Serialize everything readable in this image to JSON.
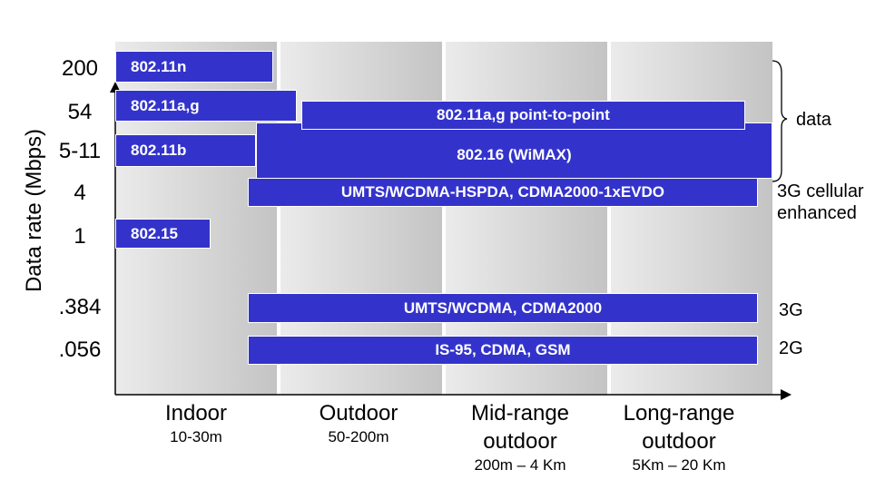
{
  "chart_data": {
    "type": "bar",
    "title": "",
    "ylabel": "Data rate (Mbps)",
    "xlabel": "",
    "y_tick_labels": [
      "200",
      "54",
      "5-11",
      "4",
      "1",
      ".384",
      ".056"
    ],
    "x_categories": [
      {
        "name": "Indoor",
        "range": "10-30m"
      },
      {
        "name": "Outdoor",
        "range": "50-200m"
      },
      {
        "name": "Mid-range outdoor",
        "range": "200m – 4 Km"
      },
      {
        "name": "Long-range outdoor",
        "range": "5Km – 20 Km"
      }
    ],
    "bars": [
      {
        "label": "802.11n",
        "rate": "200",
        "from": 0.0,
        "to": 0.98
      },
      {
        "label": "802.11a,g",
        "rate": "54",
        "from": 0.0,
        "to": 1.1
      },
      {
        "label": "802.11a,g point-to-point",
        "rate": "54",
        "from": 1.13,
        "to": 3.83
      },
      {
        "label": "802.11b",
        "rate": "5-11",
        "from": 0.0,
        "to": 0.87
      },
      {
        "label": "802.16 (WiMAX)",
        "rate": "5-11",
        "from": 0.87,
        "to": 4.0
      },
      {
        "label": "UMTS/WCDMA-HSPDA, CDMA2000-1xEVDO",
        "rate": "4",
        "from": 0.82,
        "to": 3.91
      },
      {
        "label": "802.15",
        "rate": "1",
        "from": 0.0,
        "to": 0.59
      },
      {
        "label": "UMTS/WCDMA, CDMA2000",
        "rate": ".384",
        "from": 0.82,
        "to": 3.91
      },
      {
        "label": "IS-95, CDMA, GSM",
        "rate": ".056",
        "from": 0.82,
        "to": 3.91
      }
    ],
    "side_labels": [
      {
        "text": "data",
        "group": "bracket"
      },
      {
        "text": "3G cellular enhanced"
      },
      {
        "text": "3G"
      },
      {
        "text": "2G"
      }
    ]
  }
}
